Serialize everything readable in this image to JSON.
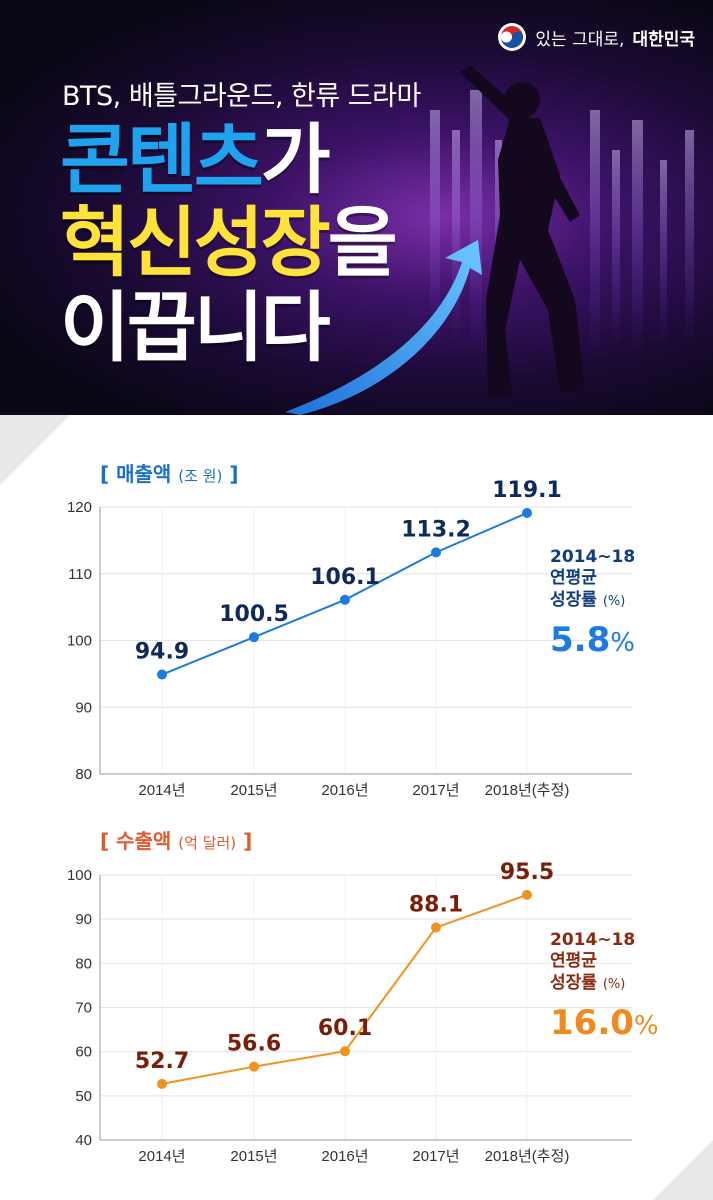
{
  "brand": {
    "prefix": "있는 그대로,",
    "name": "대한민국"
  },
  "hero": {
    "subtitle": "BTS, 배틀그라운드, 한류 드라마",
    "line1_a": "콘텐츠",
    "line1_b": "가",
    "line2_a": "혁신성장",
    "line2_b": "을",
    "line3": "이끕니다"
  },
  "chart1": {
    "title": "[ 매출액",
    "unit": "(조 원)",
    "close": "]",
    "growth": {
      "period": "2014~18",
      "label1": "연평균",
      "label2": "성장률",
      "pct_unit": "(%)",
      "value": "5.8",
      "sign": "%"
    }
  },
  "chart2": {
    "title": "[ 수출액",
    "unit": "(억 달러)",
    "close": "]",
    "growth": {
      "period": "2014~18",
      "label1": "연평균",
      "label2": "성장률",
      "pct_unit": "(%)",
      "value": "16.0",
      "sign": "%"
    }
  },
  "colors": {
    "sales_line": "#1a7be0",
    "sales_label": "#0f2a5a",
    "export_line": "#f2921e",
    "export_label": "#7a1e0a"
  },
  "chart_data": [
    {
      "type": "line",
      "title": "매출액",
      "unit": "조 원",
      "categories": [
        "2014년",
        "2015년",
        "2016년",
        "2017년",
        "2018년(추정)"
      ],
      "values": [
        94.9,
        100.5,
        106.1,
        113.2,
        119.1
      ],
      "ylim": [
        80,
        120
      ],
      "yticks": [
        80,
        90,
        100,
        110,
        120
      ],
      "grid": true
    },
    {
      "type": "line",
      "title": "수출액",
      "unit": "억 달러",
      "categories": [
        "2014년",
        "2015년",
        "2016년",
        "2017년",
        "2018년(추정)"
      ],
      "values": [
        52.7,
        56.6,
        60.1,
        88.1,
        95.5
      ],
      "ylim": [
        40,
        100
      ],
      "yticks": [
        40,
        50,
        60,
        70,
        80,
        90,
        100
      ],
      "grid": true
    }
  ]
}
